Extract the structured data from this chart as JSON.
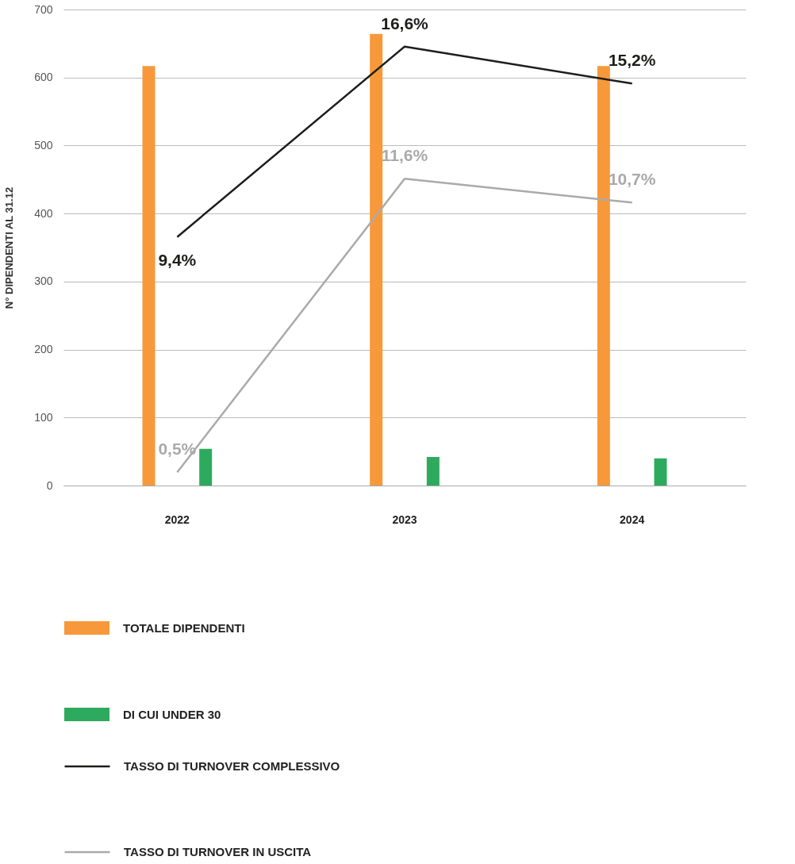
{
  "chart_data": {
    "type": "bar",
    "ylabel": "N° DIPENDENTI AL 31.12",
    "categories": [
      "2022",
      "2023",
      "2024"
    ],
    "series": [
      {
        "name": "TOTALE DIPENDENTI",
        "color": "#f7993a",
        "values": [
          617,
          664,
          617
        ]
      },
      {
        "name": "DI CUI UNDER 30",
        "color": "#2eaa5f",
        "values": [
          54,
          42,
          40
        ]
      },
      {
        "name": "TASSO DI TURNOVER COMPLESSIVO",
        "type": "line",
        "axis": "y2",
        "color": "#1d1d1b",
        "values": [
          9.4,
          16.6,
          15.2
        ],
        "value_labels": [
          "9,4%",
          "16,6%",
          "15,2%"
        ]
      },
      {
        "name": "TASSO DI TURNOVER IN USCITA",
        "type": "line",
        "axis": "y2",
        "color": "#aaaaaa",
        "values": [
          0.5,
          11.6,
          10.7
        ],
        "value_labels": [
          "0,5%",
          "11,6%",
          "10,7%"
        ]
      }
    ],
    "ylim": [
      0,
      700
    ],
    "yticks": [
      0,
      100,
      200,
      300,
      400,
      500,
      600,
      700
    ],
    "y2lim": [
      0,
      18
    ],
    "grid": "y",
    "legend": "bottom"
  }
}
